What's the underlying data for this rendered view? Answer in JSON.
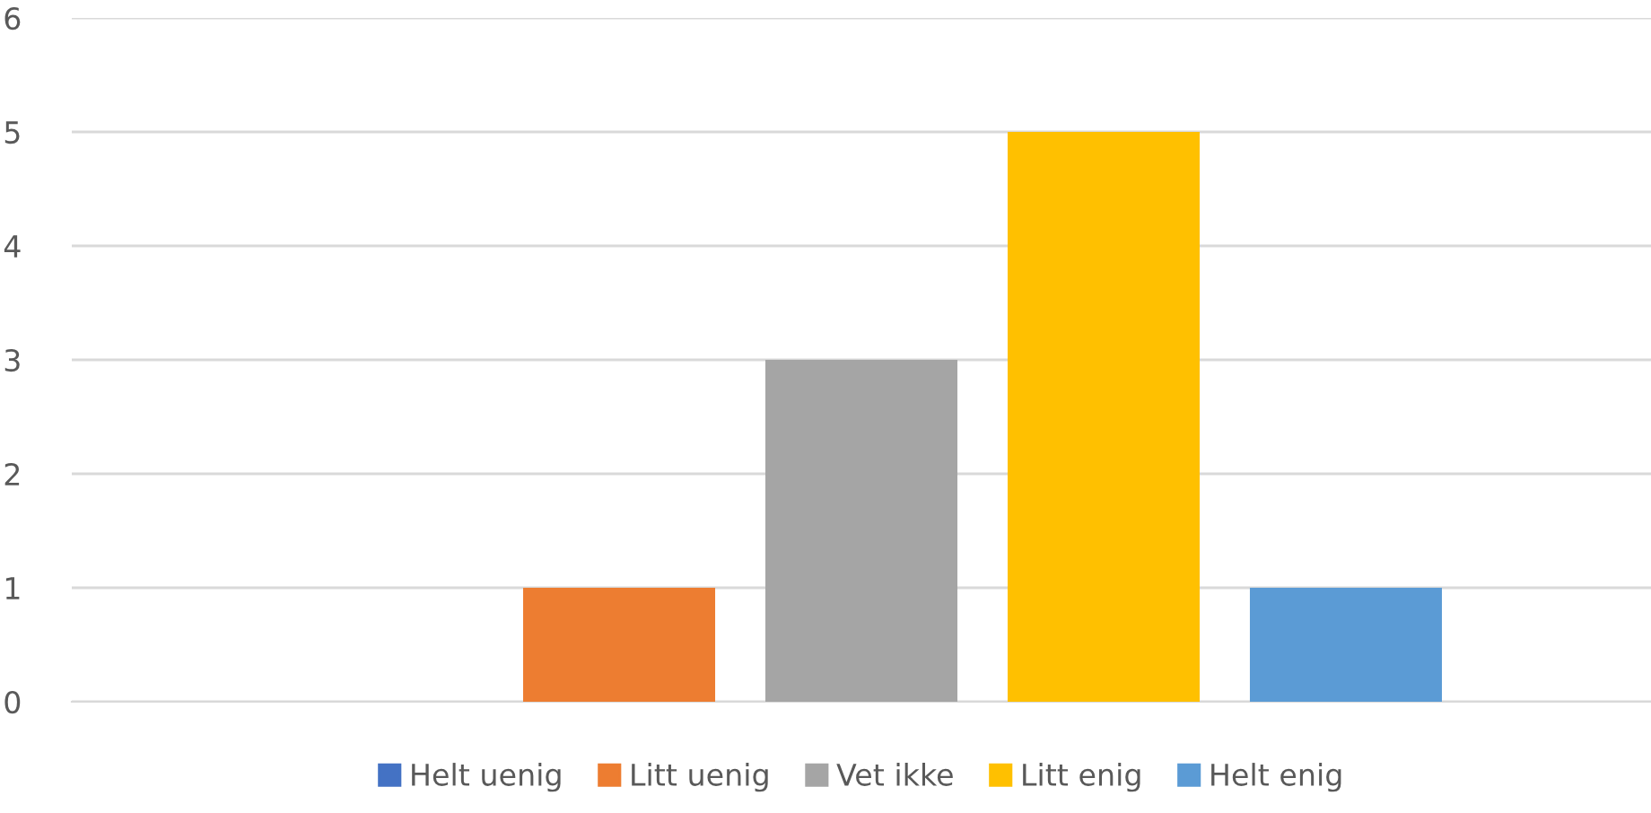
{
  "chart_data": {
    "type": "bar",
    "categories": [
      null
    ],
    "series": [
      {
        "name": "Helt uenig",
        "color": "#4472c4",
        "values": [
          0
        ]
      },
      {
        "name": "Litt uenig",
        "color": "#ed7d31",
        "values": [
          1
        ]
      },
      {
        "name": "Vet ikke",
        "color": "#a5a5a5",
        "values": [
          3
        ]
      },
      {
        "name": "Litt enig",
        "color": "#ffc000",
        "values": [
          5
        ]
      },
      {
        "name": "Helt enig",
        "color": "#5b9bd5",
        "values": [
          1
        ]
      }
    ],
    "ylim": [
      0,
      6
    ],
    "yticks": [
      0,
      1,
      2,
      3,
      4,
      5,
      6
    ],
    "grid": "y",
    "legend": "bottom"
  }
}
